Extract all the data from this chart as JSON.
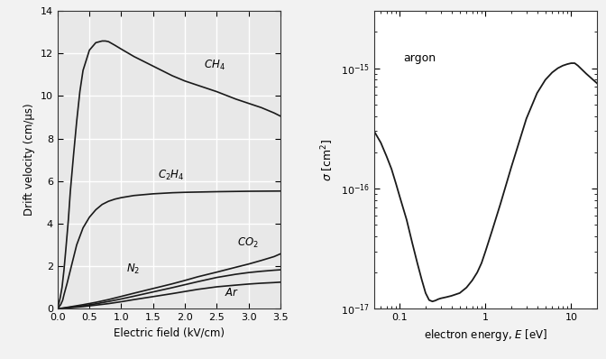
{
  "left_xlabel": "Electric field (kV/cm)",
  "left_ylabel": "Drift velocity (cm/μs)",
  "left_xlim": [
    0,
    3.5
  ],
  "left_ylim": [
    0,
    14
  ],
  "left_yticks": [
    0,
    2,
    4,
    6,
    8,
    10,
    12,
    14
  ],
  "left_xticks": [
    0,
    0.5,
    1.0,
    1.5,
    2.0,
    2.5,
    3.0,
    3.5
  ],
  "right_annotation": "argon",
  "bg_color": "#e8e8e8",
  "line_color": "#1a1a1a",
  "grid_color": "#ffffff",
  "fig_bg": "#f2f2f2"
}
